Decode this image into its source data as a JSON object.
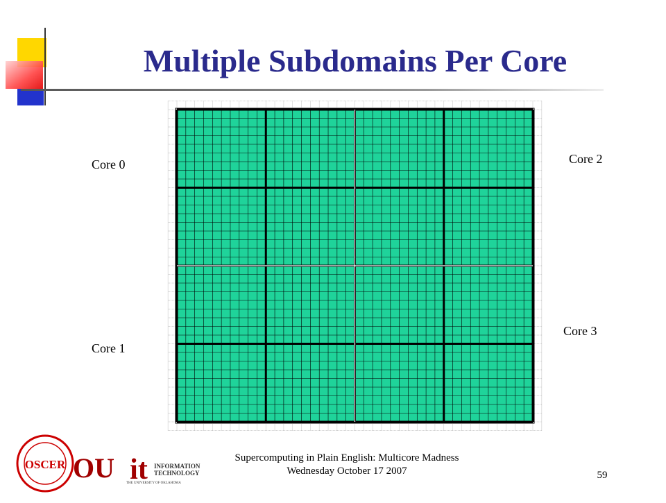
{
  "slide": {
    "title": "Multiple Subdomains Per Core",
    "cores": [
      "Core 0",
      "Core 1",
      "Core 2",
      "Core 3"
    ],
    "footer": [
      "Supercomputing in Plain English: Multicore Madness",
      "Wednesday October 17 2007"
    ],
    "page_number": "59",
    "logos": {
      "oscer": "OSCER",
      "ou": "OU",
      "it": "it",
      "it_text": [
        "INFORMATION",
        "TECHNOLOGY"
      ],
      "university": "THE UNIVERSITY OF OKLAHOMA"
    }
  }
}
